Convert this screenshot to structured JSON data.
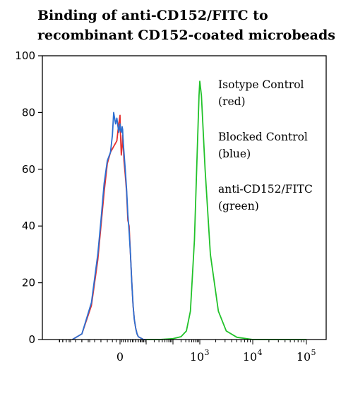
{
  "chart_data": {
    "type": "line",
    "title_lines": [
      "Binding of anti-CD152/FITC to",
      "recombinant CD152-coated microbeads"
    ],
    "xlabel": "",
    "ylabel": "",
    "ylim": [
      0,
      100
    ],
    "x_scale": "biexponential",
    "yticks": [
      0,
      20,
      40,
      60,
      80,
      100
    ],
    "xticks": [
      {
        "base": "0",
        "exp": ""
      },
      {
        "base": "10",
        "exp": "3"
      },
      {
        "base": "10",
        "exp": "4"
      },
      {
        "base": "10",
        "exp": "5"
      }
    ],
    "legend_position": "top-right",
    "legend": [
      {
        "name": "Isotype Control",
        "note": "(red)",
        "color": "#e53030"
      },
      {
        "name": "Blocked Control",
        "note": "(blue)",
        "color": "#2c6fd1"
      },
      {
        "name": "anti-CD152/FITC",
        "note": "(green)",
        "color": "#22c22a"
      }
    ],
    "series": [
      {
        "name": "Isotype Control",
        "color": "#e53030",
        "x": [
          -0.75,
          -0.6,
          -0.45,
          -0.35,
          -0.3,
          -0.25,
          -0.2,
          -0.15,
          -0.1,
          -0.05,
          -0.02,
          0.0,
          0.02,
          0.05,
          0.08,
          0.1,
          0.12,
          0.15,
          0.2,
          0.25,
          0.3,
          0.35,
          0.4,
          0.45,
          0.5,
          0.55,
          0.6,
          0.65,
          0.7,
          0.8,
          0.9,
          1.0
        ],
        "values": [
          0,
          2,
          12,
          28,
          40,
          52,
          62,
          66,
          68,
          70,
          76,
          79,
          72,
          65,
          68,
          72,
          70,
          63,
          58,
          52,
          42,
          40,
          30,
          20,
          12,
          7,
          4,
          2,
          1,
          0.5,
          0,
          0
        ]
      },
      {
        "name": "Blocked Control",
        "color": "#2c6fd1",
        "x": [
          -0.75,
          -0.6,
          -0.45,
          -0.35,
          -0.3,
          -0.25,
          -0.2,
          -0.15,
          -0.12,
          -0.1,
          -0.07,
          -0.05,
          -0.02,
          0.0,
          0.02,
          0.05,
          0.08,
          0.1,
          0.12,
          0.15,
          0.2,
          0.25,
          0.3,
          0.35,
          0.4,
          0.45,
          0.5,
          0.55,
          0.6,
          0.65,
          0.7,
          0.8,
          0.9,
          1.0
        ],
        "values": [
          0,
          2,
          13,
          30,
          42,
          55,
          63,
          66,
          72,
          80,
          76,
          78,
          73,
          76,
          74,
          73,
          75,
          74,
          70,
          66,
          60,
          53,
          44,
          38,
          30,
          20,
          12,
          7,
          4,
          2,
          1,
          0.5,
          0,
          0
        ]
      },
      {
        "name": "anti-CD152/FITC",
        "color": "#22c22a",
        "x": [
          1.0,
          1.5,
          2.0,
          2.3,
          2.5,
          2.65,
          2.8,
          2.9,
          2.97,
          3.0,
          3.03,
          3.1,
          3.2,
          3.35,
          3.5,
          3.7,
          4.0,
          4.5,
          5.0
        ],
        "values": [
          0,
          0,
          0.3,
          1,
          3,
          10,
          35,
          65,
          86,
          91,
          86,
          60,
          30,
          10,
          3,
          0.8,
          0,
          0,
          0
        ]
      }
    ]
  }
}
